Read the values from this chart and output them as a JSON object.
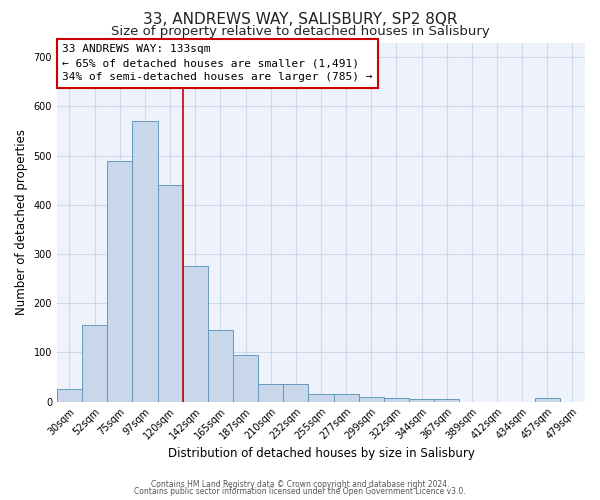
{
  "title": "33, ANDREWS WAY, SALISBURY, SP2 8QR",
  "subtitle": "Size of property relative to detached houses in Salisbury",
  "xlabel": "Distribution of detached houses by size in Salisbury",
  "ylabel": "Number of detached properties",
  "categories": [
    "30sqm",
    "52sqm",
    "75sqm",
    "97sqm",
    "120sqm",
    "142sqm",
    "165sqm",
    "187sqm",
    "210sqm",
    "232sqm",
    "255sqm",
    "277sqm",
    "299sqm",
    "322sqm",
    "344sqm",
    "367sqm",
    "389sqm",
    "412sqm",
    "434sqm",
    "457sqm",
    "479sqm"
  ],
  "values": [
    25,
    155,
    490,
    570,
    440,
    275,
    145,
    95,
    35,
    35,
    15,
    15,
    10,
    8,
    5,
    5,
    0,
    0,
    0,
    8,
    0
  ],
  "bar_color": "#c8d8ea",
  "bar_edge_color": "#6699bb",
  "grid_color": "#d0d8ee",
  "background_color": "#eef2fb",
  "vline_color": "#cc0000",
  "annotation_text": "33 ANDREWS WAY: 133sqm\n← 65% of detached houses are smaller (1,491)\n34% of semi-detached houses are larger (785) →",
  "footer_line1": "Contains HM Land Registry data © Crown copyright and database right 2024.",
  "footer_line2": "Contains public sector information licensed under the Open Government Licence v3.0.",
  "ylim": [
    0,
    730
  ],
  "yticks": [
    0,
    100,
    200,
    300,
    400,
    500,
    600,
    700
  ],
  "title_fontsize": 11,
  "subtitle_fontsize": 9.5,
  "tick_fontsize": 7,
  "ylabel_fontsize": 8.5,
  "xlabel_fontsize": 8.5,
  "footer_fontsize": 5.5
}
